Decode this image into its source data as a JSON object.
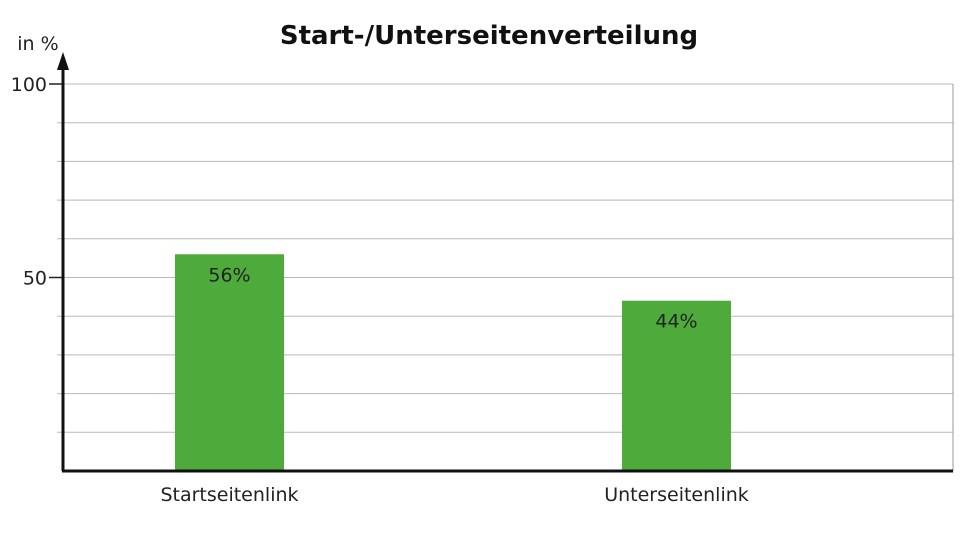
{
  "chart_data": {
    "type": "bar",
    "title": "Start-/Unterseitenverteilung",
    "ylabel": "in %",
    "xlabel": "",
    "ylim": [
      0,
      100
    ],
    "yticks": [
      50,
      100
    ],
    "grid": true,
    "categories": [
      "Startseitenlink",
      "Unterseitenlink"
    ],
    "values": [
      56,
      44
    ],
    "data_labels": [
      "56%",
      "44%"
    ],
    "bar_color": "#4eaa3b"
  }
}
